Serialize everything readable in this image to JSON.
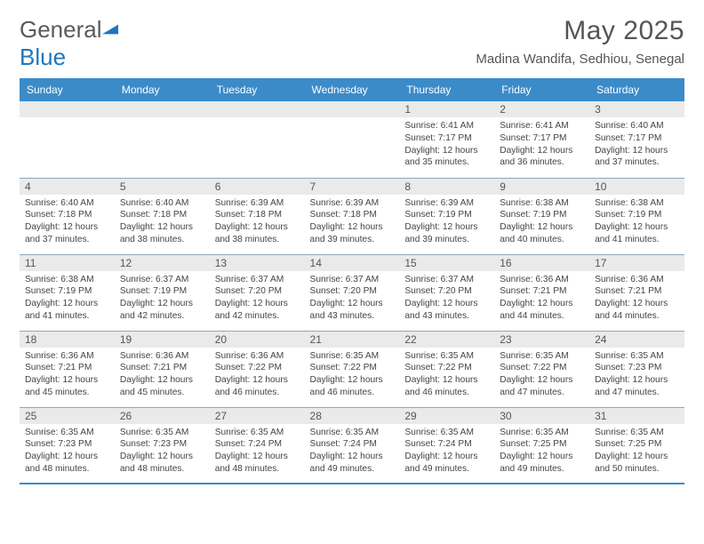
{
  "logo": {
    "word1": "General",
    "word2": "Blue",
    "word1_color": "#5a5a5a",
    "word2_color": "#2176bd",
    "mark_color": "#2176bd"
  },
  "title": {
    "month": "May 2025",
    "location": "Madina Wandifa, Sedhiou, Senegal"
  },
  "colors": {
    "header_bg": "#3b8bc9",
    "header_fg": "#ffffff",
    "date_bar_bg": "#eaeaea",
    "rule": "#8ea8bb"
  },
  "weekdays": [
    "Sunday",
    "Monday",
    "Tuesday",
    "Wednesday",
    "Thursday",
    "Friday",
    "Saturday"
  ],
  "weeks": [
    [
      {
        "blank": true
      },
      {
        "blank": true
      },
      {
        "blank": true
      },
      {
        "blank": true
      },
      {
        "date": "1",
        "sunrise": "Sunrise: 6:41 AM",
        "sunset": "Sunset: 7:17 PM",
        "daylight": "Daylight: 12 hours and 35 minutes."
      },
      {
        "date": "2",
        "sunrise": "Sunrise: 6:41 AM",
        "sunset": "Sunset: 7:17 PM",
        "daylight": "Daylight: 12 hours and 36 minutes."
      },
      {
        "date": "3",
        "sunrise": "Sunrise: 6:40 AM",
        "sunset": "Sunset: 7:17 PM",
        "daylight": "Daylight: 12 hours and 37 minutes."
      }
    ],
    [
      {
        "date": "4",
        "sunrise": "Sunrise: 6:40 AM",
        "sunset": "Sunset: 7:18 PM",
        "daylight": "Daylight: 12 hours and 37 minutes."
      },
      {
        "date": "5",
        "sunrise": "Sunrise: 6:40 AM",
        "sunset": "Sunset: 7:18 PM",
        "daylight": "Daylight: 12 hours and 38 minutes."
      },
      {
        "date": "6",
        "sunrise": "Sunrise: 6:39 AM",
        "sunset": "Sunset: 7:18 PM",
        "daylight": "Daylight: 12 hours and 38 minutes."
      },
      {
        "date": "7",
        "sunrise": "Sunrise: 6:39 AM",
        "sunset": "Sunset: 7:18 PM",
        "daylight": "Daylight: 12 hours and 39 minutes."
      },
      {
        "date": "8",
        "sunrise": "Sunrise: 6:39 AM",
        "sunset": "Sunset: 7:19 PM",
        "daylight": "Daylight: 12 hours and 39 minutes."
      },
      {
        "date": "9",
        "sunrise": "Sunrise: 6:38 AM",
        "sunset": "Sunset: 7:19 PM",
        "daylight": "Daylight: 12 hours and 40 minutes."
      },
      {
        "date": "10",
        "sunrise": "Sunrise: 6:38 AM",
        "sunset": "Sunset: 7:19 PM",
        "daylight": "Daylight: 12 hours and 41 minutes."
      }
    ],
    [
      {
        "date": "11",
        "sunrise": "Sunrise: 6:38 AM",
        "sunset": "Sunset: 7:19 PM",
        "daylight": "Daylight: 12 hours and 41 minutes."
      },
      {
        "date": "12",
        "sunrise": "Sunrise: 6:37 AM",
        "sunset": "Sunset: 7:19 PM",
        "daylight": "Daylight: 12 hours and 42 minutes."
      },
      {
        "date": "13",
        "sunrise": "Sunrise: 6:37 AM",
        "sunset": "Sunset: 7:20 PM",
        "daylight": "Daylight: 12 hours and 42 minutes."
      },
      {
        "date": "14",
        "sunrise": "Sunrise: 6:37 AM",
        "sunset": "Sunset: 7:20 PM",
        "daylight": "Daylight: 12 hours and 43 minutes."
      },
      {
        "date": "15",
        "sunrise": "Sunrise: 6:37 AM",
        "sunset": "Sunset: 7:20 PM",
        "daylight": "Daylight: 12 hours and 43 minutes."
      },
      {
        "date": "16",
        "sunrise": "Sunrise: 6:36 AM",
        "sunset": "Sunset: 7:21 PM",
        "daylight": "Daylight: 12 hours and 44 minutes."
      },
      {
        "date": "17",
        "sunrise": "Sunrise: 6:36 AM",
        "sunset": "Sunset: 7:21 PM",
        "daylight": "Daylight: 12 hours and 44 minutes."
      }
    ],
    [
      {
        "date": "18",
        "sunrise": "Sunrise: 6:36 AM",
        "sunset": "Sunset: 7:21 PM",
        "daylight": "Daylight: 12 hours and 45 minutes."
      },
      {
        "date": "19",
        "sunrise": "Sunrise: 6:36 AM",
        "sunset": "Sunset: 7:21 PM",
        "daylight": "Daylight: 12 hours and 45 minutes."
      },
      {
        "date": "20",
        "sunrise": "Sunrise: 6:36 AM",
        "sunset": "Sunset: 7:22 PM",
        "daylight": "Daylight: 12 hours and 46 minutes."
      },
      {
        "date": "21",
        "sunrise": "Sunrise: 6:35 AM",
        "sunset": "Sunset: 7:22 PM",
        "daylight": "Daylight: 12 hours and 46 minutes."
      },
      {
        "date": "22",
        "sunrise": "Sunrise: 6:35 AM",
        "sunset": "Sunset: 7:22 PM",
        "daylight": "Daylight: 12 hours and 46 minutes."
      },
      {
        "date": "23",
        "sunrise": "Sunrise: 6:35 AM",
        "sunset": "Sunset: 7:22 PM",
        "daylight": "Daylight: 12 hours and 47 minutes."
      },
      {
        "date": "24",
        "sunrise": "Sunrise: 6:35 AM",
        "sunset": "Sunset: 7:23 PM",
        "daylight": "Daylight: 12 hours and 47 minutes."
      }
    ],
    [
      {
        "date": "25",
        "sunrise": "Sunrise: 6:35 AM",
        "sunset": "Sunset: 7:23 PM",
        "daylight": "Daylight: 12 hours and 48 minutes."
      },
      {
        "date": "26",
        "sunrise": "Sunrise: 6:35 AM",
        "sunset": "Sunset: 7:23 PM",
        "daylight": "Daylight: 12 hours and 48 minutes."
      },
      {
        "date": "27",
        "sunrise": "Sunrise: 6:35 AM",
        "sunset": "Sunset: 7:24 PM",
        "daylight": "Daylight: 12 hours and 48 minutes."
      },
      {
        "date": "28",
        "sunrise": "Sunrise: 6:35 AM",
        "sunset": "Sunset: 7:24 PM",
        "daylight": "Daylight: 12 hours and 49 minutes."
      },
      {
        "date": "29",
        "sunrise": "Sunrise: 6:35 AM",
        "sunset": "Sunset: 7:24 PM",
        "daylight": "Daylight: 12 hours and 49 minutes."
      },
      {
        "date": "30",
        "sunrise": "Sunrise: 6:35 AM",
        "sunset": "Sunset: 7:25 PM",
        "daylight": "Daylight: 12 hours and 49 minutes."
      },
      {
        "date": "31",
        "sunrise": "Sunrise: 6:35 AM",
        "sunset": "Sunset: 7:25 PM",
        "daylight": "Daylight: 12 hours and 50 minutes."
      }
    ]
  ]
}
